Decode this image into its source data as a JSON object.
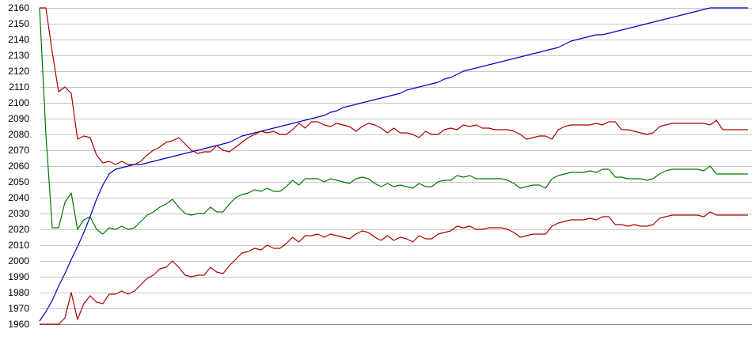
{
  "chart_data": {
    "type": "line",
    "title": "",
    "xlabel": "",
    "ylabel": "",
    "ylim": [
      1960,
      2160
    ],
    "y_ticks": [
      1960,
      1970,
      1980,
      1990,
      2000,
      2010,
      2020,
      2030,
      2040,
      2050,
      2060,
      2070,
      2080,
      2090,
      2100,
      2110,
      2120,
      2130,
      2140,
      2150,
      2160
    ],
    "grid": "horizontal",
    "legend": "none",
    "x": [
      0,
      1,
      2,
      3,
      4,
      5,
      6,
      7,
      8,
      9,
      10,
      11,
      12,
      13,
      14,
      15,
      16,
      17,
      18,
      19,
      20,
      21,
      22,
      23,
      24,
      25,
      26,
      27,
      28,
      29,
      30,
      31,
      32,
      33,
      34,
      35,
      36,
      37,
      38,
      39,
      40,
      41,
      42,
      43,
      44,
      45,
      46,
      47,
      48,
      49,
      50,
      51,
      52,
      53,
      54,
      55,
      56,
      57,
      58,
      59,
      60,
      61,
      62,
      63,
      64,
      65,
      66,
      67,
      68,
      69,
      70,
      71,
      72,
      73,
      74,
      75,
      76,
      77,
      78,
      79,
      80,
      81,
      82,
      83,
      84,
      85,
      86,
      87,
      88,
      89,
      90,
      91,
      92,
      93,
      94,
      95,
      96,
      97,
      98,
      99,
      100,
      101,
      102,
      103,
      104,
      105,
      106,
      107,
      108,
      109,
      110,
      111,
      112
    ],
    "series": [
      {
        "color": "#0000bb",
        "values": [
          1962,
          1968,
          1975,
          1984,
          1992,
          2001,
          2009,
          2018,
          2028,
          2039,
          2048,
          2055,
          2058,
          2059,
          2060,
          2061,
          2061,
          2062,
          2063,
          2064,
          2065,
          2066,
          2067,
          2068,
          2069,
          2070,
          2071,
          2072,
          2073,
          2074,
          2075,
          2077,
          2079,
          2080,
          2081,
          2082,
          2083,
          2084,
          2085,
          2086,
          2087,
          2088,
          2089,
          2090,
          2091,
          2092,
          2094,
          2095,
          2097,
          2098,
          2099,
          2100,
          2101,
          2102,
          2103,
          2104,
          2105,
          2106,
          2108,
          2109,
          2110,
          2111,
          2112,
          2113,
          2115,
          2116,
          2118,
          2120,
          2121,
          2122,
          2123,
          2124,
          2125,
          2126,
          2127,
          2128,
          2129,
          2130,
          2131,
          2132,
          2133,
          2134,
          2135,
          2137,
          2139,
          2140,
          2141,
          2142,
          2143,
          2143,
          2144,
          2145,
          2146,
          2147,
          2148,
          2149,
          2150,
          2151,
          2152,
          2153,
          2154,
          2155,
          2156,
          2157,
          2158,
          2159,
          2160,
          2160,
          2160,
          2160,
          2160,
          2160,
          2160
        ]
      },
      {
        "color": "#aa0000",
        "values": [
          2160,
          2160,
          2132,
          2107,
          2110,
          2106,
          2077,
          2079,
          2078,
          2067,
          2062,
          2063,
          2061,
          2063,
          2061,
          2061,
          2063,
          2067,
          2070,
          2072,
          2075,
          2076,
          2078,
          2074,
          2070,
          2068,
          2069,
          2069,
          2073,
          2070,
          2069,
          2072,
          2075,
          2078,
          2080,
          2082,
          2081,
          2082,
          2080,
          2080,
          2083,
          2087,
          2084,
          2088,
          2088,
          2086,
          2085,
          2087,
          2086,
          2085,
          2082,
          2085,
          2087,
          2086,
          2084,
          2081,
          2084,
          2081,
          2081,
          2080,
          2078,
          2082,
          2080,
          2080,
          2083,
          2084,
          2083,
          2086,
          2085,
          2086,
          2084,
          2084,
          2083,
          2083,
          2083,
          2082,
          2080,
          2077,
          2078,
          2079,
          2079,
          2077,
          2083,
          2085,
          2086,
          2086,
          2086,
          2086,
          2087,
          2086,
          2088,
          2088,
          2083,
          2083,
          2082,
          2081,
          2080,
          2081,
          2085,
          2086,
          2087,
          2087,
          2087,
          2087,
          2087,
          2087,
          2086,
          2089,
          2083,
          2083,
          2083,
          2083,
          2083
        ]
      },
      {
        "color": "#007700",
        "values": [
          2160,
          2080,
          2021,
          2021,
          2037,
          2043,
          2020,
          2026,
          2028,
          2020,
          2017,
          2021,
          2020,
          2022,
          2020,
          2021,
          2025,
          2029,
          2031,
          2034,
          2036,
          2039,
          2034,
          2030,
          2029,
          2030,
          2030,
          2034,
          2031,
          2031,
          2036,
          2040,
          2042,
          2043,
          2045,
          2044,
          2046,
          2044,
          2044,
          2047,
          2051,
          2048,
          2052,
          2052,
          2052,
          2050,
          2052,
          2051,
          2050,
          2049,
          2052,
          2053,
          2052,
          2049,
          2047,
          2049,
          2047,
          2048,
          2047,
          2046,
          2049,
          2047,
          2047,
          2050,
          2051,
          2051,
          2054,
          2053,
          2054,
          2052,
          2052,
          2052,
          2052,
          2052,
          2051,
          2049,
          2046,
          2047,
          2048,
          2048,
          2046,
          2052,
          2054,
          2055,
          2056,
          2056,
          2056,
          2057,
          2056,
          2058,
          2058,
          2053,
          2053,
          2052,
          2052,
          2052,
          2051,
          2052,
          2055,
          2057,
          2058,
          2058,
          2058,
          2058,
          2058,
          2057,
          2060,
          2055,
          2055,
          2055,
          2055,
          2055,
          2055
        ]
      },
      {
        "color": "#aa0000",
        "values": [
          1960,
          1960,
          1960,
          1960,
          1964,
          1980,
          1963,
          1973,
          1978,
          1974,
          1973,
          1979,
          1979,
          1981,
          1979,
          1981,
          1985,
          1989,
          1991,
          1995,
          1996,
          2000,
          1996,
          1991,
          1990,
          1991,
          1991,
          1996,
          1993,
          1992,
          1997,
          2001,
          2005,
          2006,
          2008,
          2007,
          2010,
          2008,
          2008,
          2011,
          2015,
          2012,
          2016,
          2016,
          2017,
          2015,
          2017,
          2016,
          2015,
          2014,
          2017,
          2019,
          2018,
          2015,
          2013,
          2016,
          2013,
          2015,
          2014,
          2012,
          2016,
          2014,
          2014,
          2017,
          2018,
          2019,
          2022,
          2021,
          2022,
          2020,
          2020,
          2021,
          2021,
          2021,
          2020,
          2018,
          2015,
          2016,
          2017,
          2017,
          2017,
          2022,
          2024,
          2025,
          2026,
          2026,
          2026,
          2027,
          2026,
          2028,
          2028,
          2023,
          2023,
          2022,
          2023,
          2022,
          2022,
          2023,
          2027,
          2028,
          2029,
          2029,
          2029,
          2029,
          2029,
          2028,
          2031,
          2029,
          2029,
          2029,
          2029,
          2029,
          2029
        ]
      }
    ]
  }
}
